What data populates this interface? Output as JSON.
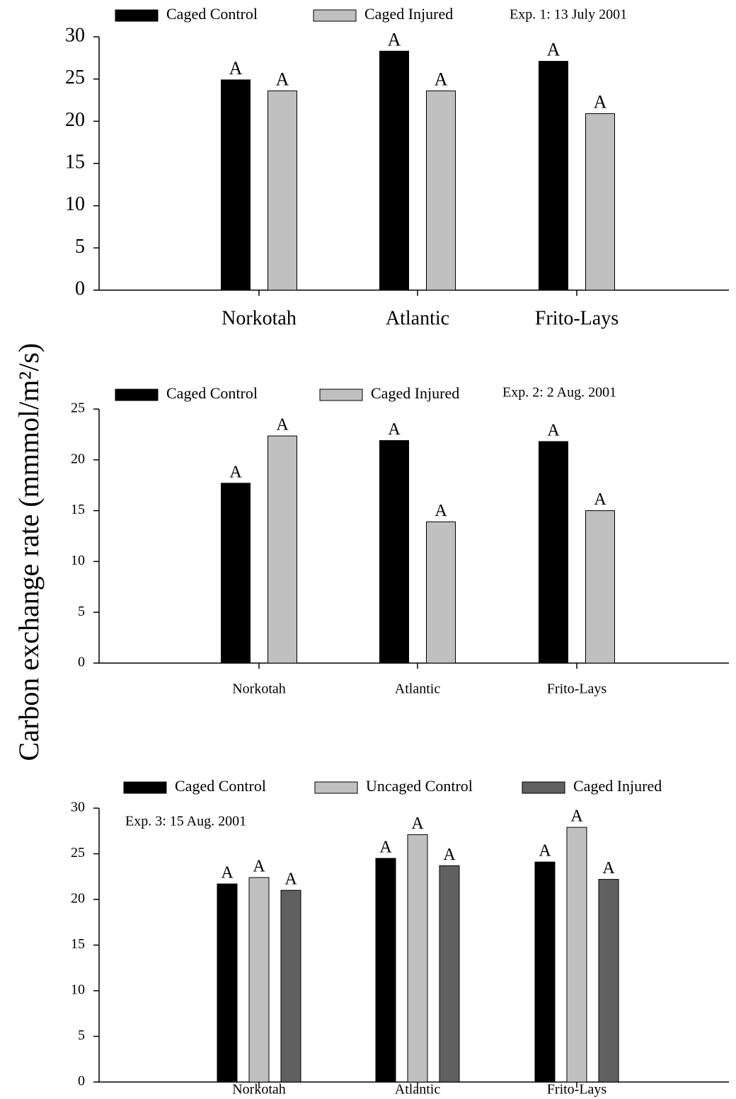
{
  "ylabel": "Carbon exchange rate (mmmol/m²/s)",
  "chart_data": [
    {
      "type": "bar",
      "subtitle": "Exp. 1: 13 July 2001",
      "categories": [
        "Norkotah",
        "Atlantic",
        "Frito-Lays"
      ],
      "series": [
        {
          "name": "Caged Control",
          "color": "#000000",
          "values": [
            24.9,
            28.3,
            27.1
          ],
          "letters": [
            "A",
            "A",
            "A"
          ]
        },
        {
          "name": "Caged Injured",
          "color": "#c0c0c0",
          "values": [
            23.6,
            23.6,
            20.9
          ],
          "letters": [
            "A",
            "A",
            "A"
          ]
        }
      ],
      "ylim": [
        0,
        30
      ],
      "yticks": [
        0,
        5,
        10,
        15,
        20,
        25,
        30
      ]
    },
    {
      "type": "bar",
      "subtitle": "Exp. 2: 2 Aug. 2001",
      "categories": [
        "Norkotah",
        "Atlantic",
        "Frito-Lays"
      ],
      "series": [
        {
          "name": "Caged Control",
          "color": "#000000",
          "values": [
            17.7,
            21.9,
            21.8
          ],
          "letters": [
            "A",
            "A",
            "A"
          ]
        },
        {
          "name": "Caged Injured",
          "color": "#c0c0c0",
          "values": [
            22.35,
            13.9,
            15.0
          ],
          "letters": [
            "A",
            "A",
            "A"
          ]
        }
      ],
      "ylim": [
        0,
        25
      ],
      "yticks": [
        0,
        5,
        10,
        15,
        20,
        25
      ]
    },
    {
      "type": "bar",
      "subtitle": "Exp. 3: 15 Aug. 2001",
      "categories": [
        "Norkotah",
        "Atlantic",
        "Frito-Lays"
      ],
      "series": [
        {
          "name": "Caged Control",
          "color": "#000000",
          "values": [
            21.7,
            24.5,
            24.1
          ],
          "letters": [
            "A",
            "A",
            "A"
          ]
        },
        {
          "name": "Uncaged Control",
          "color": "#c0c0c0",
          "values": [
            22.4,
            27.1,
            27.9
          ],
          "letters": [
            "A",
            "A",
            "A"
          ]
        },
        {
          "name": "Caged Injured",
          "color": "#606060",
          "values": [
            21.0,
            23.7,
            22.2
          ],
          "letters": [
            "A",
            "A",
            "A"
          ]
        }
      ],
      "ylim": [
        0,
        30
      ],
      "yticks": [
        0,
        5,
        10,
        15,
        20,
        25,
        30
      ]
    }
  ]
}
